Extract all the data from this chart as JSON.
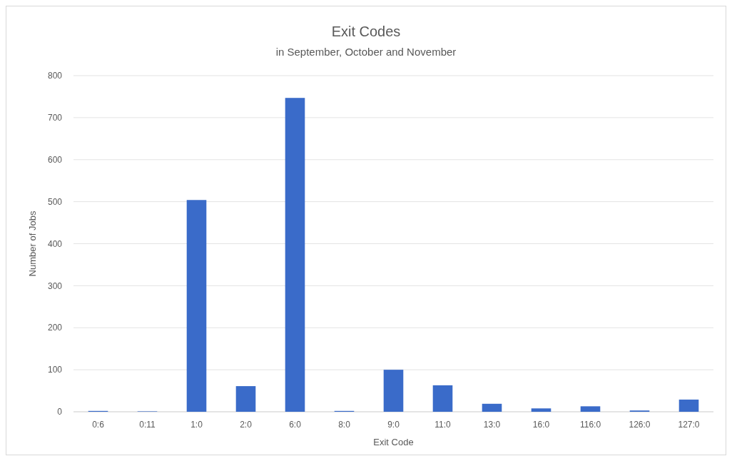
{
  "chart_data": {
    "type": "bar",
    "title": "Exit Codes",
    "subtitle": "in September, October and November",
    "xlabel": "Exit Code",
    "ylabel": "Number of Jobs",
    "categories": [
      "0:6",
      "0:11",
      "1:0",
      "2:0",
      "6:0",
      "8:0",
      "9:0",
      "11:0",
      "13:0",
      "16:0",
      "116:0",
      "126:0",
      "127:0"
    ],
    "values": [
      2,
      1,
      504,
      61,
      747,
      2,
      100,
      63,
      19,
      8,
      13,
      3,
      29
    ],
    "color": "#3a6bc9",
    "ylim": [
      0,
      800
    ],
    "yticks": [
      0,
      100,
      200,
      300,
      400,
      500,
      600,
      700,
      800
    ],
    "grid": "y"
  }
}
